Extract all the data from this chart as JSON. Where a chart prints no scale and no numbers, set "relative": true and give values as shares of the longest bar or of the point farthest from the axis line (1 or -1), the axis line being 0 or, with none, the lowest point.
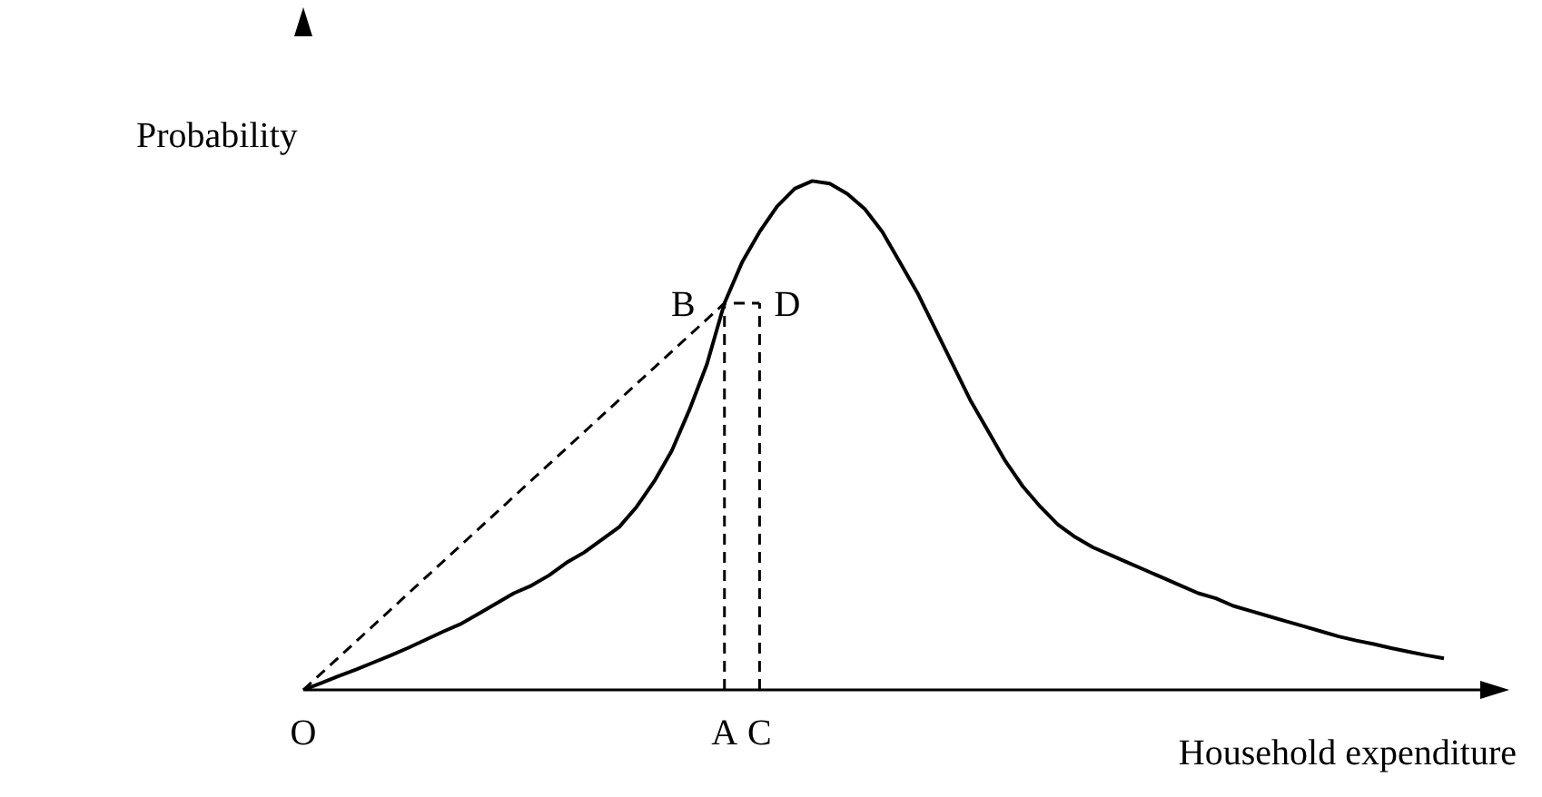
{
  "chart_data": {
    "type": "line",
    "relative": true,
    "xlabel": "Household expenditure",
    "ylabel": "Probability",
    "categories": [
      "O",
      null,
      null,
      null,
      null,
      null,
      null,
      null,
      null,
      null,
      null,
      null,
      null,
      null,
      null,
      null,
      null,
      null,
      null,
      null,
      null,
      null,
      null,
      null,
      "A",
      null,
      "C",
      null,
      null,
      null,
      null,
      null,
      null,
      null,
      null,
      null,
      null,
      null,
      null,
      null,
      null,
      null,
      null,
      null,
      null,
      null,
      null,
      null,
      null,
      null,
      null,
      null,
      null,
      null,
      null,
      null,
      null,
      null,
      null,
      null,
      null,
      null,
      null,
      null,
      null,
      null
    ],
    "series": [
      {
        "color": "#000000",
        "line_style": "solid",
        "values": [
          0,
          0.013,
          0.027,
          0.04,
          0.054,
          0.068,
          0.083,
          0.099,
          0.115,
          0.13,
          0.15,
          0.17,
          0.19,
          0.205,
          0.225,
          0.25,
          0.27,
          0.295,
          0.32,
          0.36,
          0.41,
          0.47,
          0.55,
          0.64,
          0.76,
          0.84,
          0.9,
          0.95,
          0.985,
          1,
          0.995,
          0.975,
          0.945,
          0.9,
          0.84,
          0.78,
          0.71,
          0.64,
          0.57,
          0.51,
          0.45,
          0.4,
          0.36,
          0.325,
          0.3,
          0.28,
          0.265,
          0.25,
          0.235,
          0.22,
          0.205,
          0.19,
          0.18,
          0.165,
          0.155,
          0.145,
          0.135,
          0.125,
          0.115,
          0.105,
          0.097,
          0.09,
          0.082,
          0.075,
          0.068,
          0.062
        ]
      },
      {
        "color": "#000000",
        "line_style": "dashed",
        "values": [
          0,
          null,
          null,
          null,
          null,
          null,
          null,
          null,
          null,
          null,
          null,
          null,
          null,
          null,
          null,
          null,
          null,
          null,
          null,
          null,
          null,
          null,
          null,
          null,
          0.76,
          null,
          0.76,
          null,
          null,
          null,
          null,
          null,
          null,
          null,
          null,
          null,
          null,
          null,
          null,
          null,
          null,
          null,
          null,
          null,
          null,
          null,
          null,
          null,
          null,
          null,
          null,
          null,
          null,
          null,
          null,
          null,
          null,
          null,
          null,
          null,
          null,
          null,
          null,
          null,
          null,
          null
        ]
      }
    ],
    "ref_lines": [
      {
        "axis": "x",
        "value": "A",
        "line_style": "dashed",
        "color": "#000000"
      },
      {
        "axis": "x",
        "value": "C",
        "line_style": "dashed",
        "color": "#000000"
      }
    ],
    "annotations": [
      {
        "text": "B",
        "x": "A",
        "y": 0.76
      },
      {
        "text": "D",
        "x": "C",
        "y": 0.76
      }
    ],
    "marker": "none",
    "grid": false
  }
}
